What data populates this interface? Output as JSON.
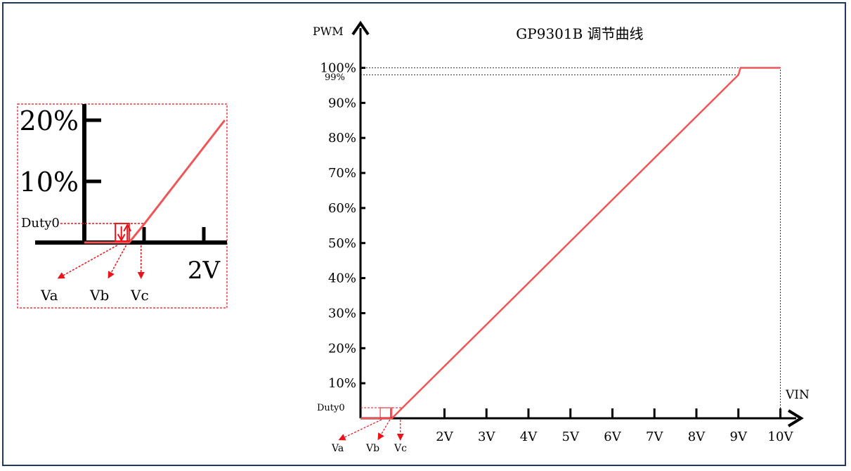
{
  "chart_data": [
    {
      "type": "line",
      "title": "GP9301B 调节曲线",
      "ylabel": "PWM",
      "xlabel": "VIN",
      "x_ticks": [
        "2V",
        "3V",
        "4V",
        "5V",
        "6V",
        "7V",
        "8V",
        "9V",
        "10V"
      ],
      "x_tick_values": [
        2,
        3,
        4,
        5,
        6,
        7,
        8,
        9,
        10
      ],
      "y_ticks": [
        "10%",
        "20%",
        "30%",
        "40%",
        "50%",
        "60%",
        "70%",
        "80%",
        "90%",
        "100%"
      ],
      "y_tick_values": [
        10,
        20,
        30,
        40,
        50,
        60,
        70,
        80,
        90,
        100
      ],
      "extra_y_labels": {
        "duty0": "Duty0",
        "p99": "99%"
      },
      "duty0": 3,
      "xlim": [
        0,
        10
      ],
      "ylim": [
        0,
        100
      ],
      "series": [
        {
          "x": [
            0,
            0.75,
            1.0,
            9.0,
            9.05,
            10.0
          ],
          "y": [
            0,
            0,
            3,
            98,
            100,
            100
          ]
        }
      ],
      "annotations": {
        "va": "Va",
        "vb": "Vb",
        "vc": "Vc"
      }
    },
    {
      "type": "line",
      "x_ticks": [
        "2V"
      ],
      "y_ticks": [
        "10%",
        "20%"
      ],
      "y_tick_values": [
        10,
        20
      ],
      "extra_y_labels": {
        "duty0": "Duty0"
      },
      "duty0": 3,
      "xlim": [
        0,
        2.35
      ],
      "ylim": [
        0,
        23
      ],
      "series": [
        {
          "x": [
            0,
            0.75,
            1.0,
            2.35
          ],
          "y": [
            0,
            0,
            3,
            20
          ]
        }
      ],
      "annotations": {
        "va": "Va",
        "vb": "Vb",
        "vc": "Vc"
      }
    }
  ],
  "colors": {
    "curve": "#f05555",
    "accent_red": "#e8141a",
    "axis": "#000000",
    "frame": "#1f3864"
  }
}
